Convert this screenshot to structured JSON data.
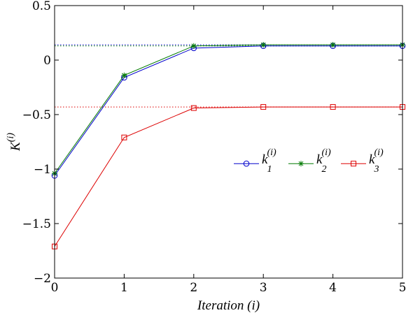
{
  "chart_data": {
    "type": "line",
    "title": "",
    "xlabel": "Iteration (i)",
    "ylabel": "K",
    "ylabel_sup": "(i)",
    "xlim": [
      0,
      5
    ],
    "ylim": [
      -2,
      0.5
    ],
    "x_ticks": [
      0,
      1,
      2,
      3,
      4,
      5
    ],
    "x_tick_labels": [
      "0",
      "1",
      "2",
      "3",
      "4",
      "5"
    ],
    "y_ticks": [
      0.5,
      0,
      -0.5,
      -1,
      -1.5,
      -2
    ],
    "y_tick_labels": [
      "0.5",
      "0",
      "−0.5",
      "−1",
      "−1.5",
      "−2"
    ],
    "grid": false,
    "legend_position": "center-right",
    "x": [
      0,
      1,
      2,
      3,
      4,
      5
    ],
    "series": [
      {
        "name": "k",
        "sub": "1",
        "sup": "(i)",
        "marker": "circle",
        "color": "#0000cc",
        "values": [
          -1.06,
          -0.16,
          0.11,
          0.13,
          0.13,
          0.13
        ]
      },
      {
        "name": "k",
        "sub": "2",
        "sup": "(i)",
        "marker": "star",
        "color": "#007a00",
        "values": [
          -1.04,
          -0.14,
          0.13,
          0.14,
          0.14,
          0.14
        ]
      },
      {
        "name": "k",
        "sub": "3",
        "sup": "(i)",
        "marker": "square",
        "color": "#dd0000",
        "values": [
          -1.71,
          -0.71,
          -0.44,
          -0.43,
          -0.43,
          -0.43
        ]
      }
    ],
    "reference_lines": [
      {
        "y": 0.14,
        "color": "#0000cc",
        "style": "dotted"
      },
      {
        "y": 0.13,
        "color": "#007a00",
        "style": "dotted"
      },
      {
        "y": -0.43,
        "color": "#dd0000",
        "style": "dotted"
      }
    ]
  }
}
